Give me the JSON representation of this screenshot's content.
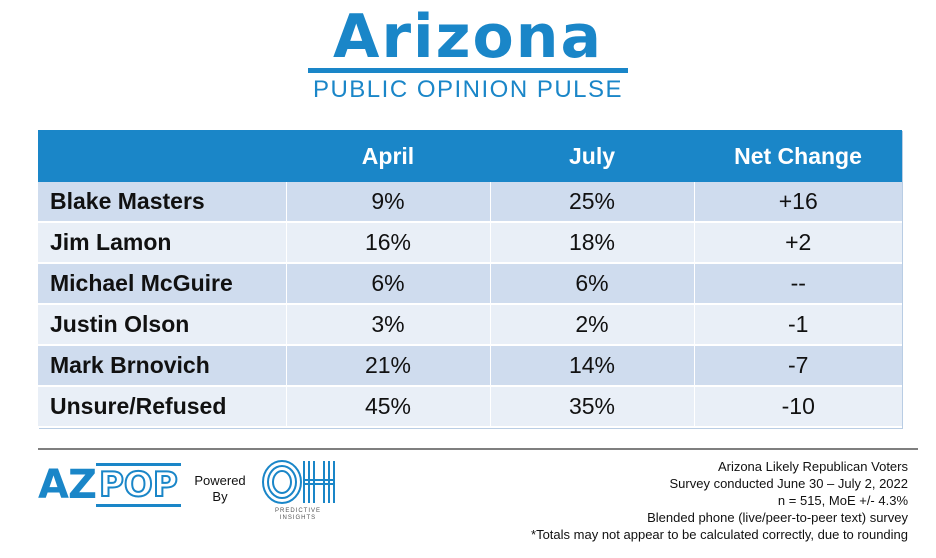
{
  "header": {
    "title": "Arizona",
    "subtitle": "PUBLIC OPINION PULSE"
  },
  "chart_data": {
    "type": "table",
    "columns": [
      "",
      "April",
      "July",
      "Net Change"
    ],
    "rows": [
      {
        "candidate": "Blake Masters",
        "april": "9%",
        "july": "25%",
        "net": "+16"
      },
      {
        "candidate": "Jim Lamon",
        "april": "16%",
        "july": "18%",
        "net": "+2"
      },
      {
        "candidate": "Michael McGuire",
        "april": "6%",
        "july": "6%",
        "net": "--"
      },
      {
        "candidate": "Justin Olson",
        "april": "3%",
        "july": "2%",
        "net": "-1"
      },
      {
        "candidate": "Mark Brnovich",
        "april": "21%",
        "july": "14%",
        "net": "-7"
      },
      {
        "candidate": "Unsure/Refused",
        "april": "45%",
        "july": "35%",
        "net": "-10"
      }
    ]
  },
  "footer": {
    "logo_az": "AZ",
    "logo_pop": "POP",
    "powered_line1": "Powered",
    "powered_line2": "By",
    "oh_logo_text": "OH",
    "oh_caption_line1": "PREDICTIVE",
    "oh_caption_line2": "INSIGHTS",
    "notes": [
      "Arizona Likely Republican Voters",
      "Survey conducted June 30 – July 2, 2022",
      "n = 515, MoE +/- 4.3%",
      "Blended phone (live/peer-to-peer text) survey",
      "*Totals may not appear to be calculated correctly, due to rounding"
    ]
  },
  "colors": {
    "brand_blue": "#1a86c8",
    "row_dark": "#cfdcee",
    "row_light": "#e9eff7"
  }
}
